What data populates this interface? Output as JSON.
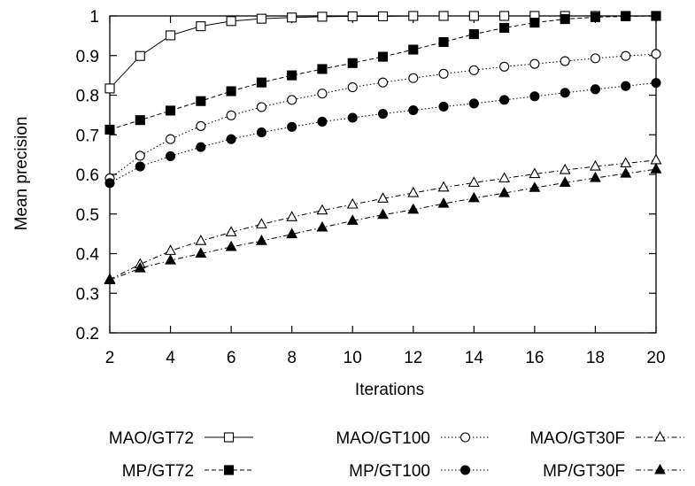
{
  "chart_data": {
    "type": "line",
    "title": "",
    "xlabel": "Iterations",
    "ylabel": "Mean precision",
    "xlim": [
      2,
      20
    ],
    "ylim": [
      0.2,
      1
    ],
    "xticks": [
      2,
      4,
      6,
      8,
      10,
      12,
      14,
      16,
      18,
      20
    ],
    "xtick_labels": [
      "2",
      "4",
      "6",
      "8",
      "10",
      "12",
      "14",
      "16",
      "18",
      "20"
    ],
    "yticks": [
      0.2,
      0.3,
      0.4,
      0.5,
      0.6,
      0.7,
      0.8,
      0.9,
      1
    ],
    "ytick_labels": [
      "0.2",
      "0.3",
      "0.4",
      "0.5",
      "0.6",
      "0.7",
      "0.8",
      "0.9",
      "1"
    ],
    "grid": false,
    "legend_position": "bottom",
    "x": [
      2,
      3,
      4,
      5,
      6,
      7,
      8,
      9,
      10,
      11,
      12,
      13,
      14,
      15,
      16,
      17,
      18,
      19,
      20
    ],
    "series": [
      {
        "name": "MAO/GT72",
        "marker": "open-square",
        "dash": "solid",
        "values": [
          0.817,
          0.899,
          0.951,
          0.974,
          0.987,
          0.993,
          0.996,
          0.998,
          0.999,
          0.999,
          1.0,
          1.0,
          1.0,
          1.0,
          1.0,
          1.0,
          1.0,
          1.0,
          1.0
        ]
      },
      {
        "name": "MP/GT72",
        "marker": "filled-square",
        "dash": "dashed",
        "values": [
          0.713,
          0.737,
          0.761,
          0.785,
          0.81,
          0.832,
          0.85,
          0.866,
          0.881,
          0.897,
          0.915,
          0.934,
          0.954,
          0.97,
          0.983,
          0.992,
          0.997,
          0.999,
          1.0
        ]
      },
      {
        "name": "MAO/GT100",
        "marker": "open-circle",
        "dash": "dotted",
        "values": [
          0.59,
          0.647,
          0.689,
          0.722,
          0.749,
          0.77,
          0.788,
          0.804,
          0.82,
          0.832,
          0.843,
          0.854,
          0.863,
          0.872,
          0.879,
          0.886,
          0.893,
          0.899,
          0.904
        ]
      },
      {
        "name": "MP/GT100",
        "marker": "filled-circle",
        "dash": "dotted",
        "values": [
          0.578,
          0.62,
          0.646,
          0.669,
          0.689,
          0.706,
          0.72,
          0.733,
          0.743,
          0.753,
          0.762,
          0.771,
          0.779,
          0.788,
          0.797,
          0.806,
          0.815,
          0.823,
          0.831
        ]
      },
      {
        "name": "MAO/GT30F",
        "marker": "open-triangle",
        "dash": "dash-dot",
        "values": [
          0.335,
          0.373,
          0.407,
          0.432,
          0.454,
          0.474,
          0.492,
          0.509,
          0.524,
          0.539,
          0.553,
          0.567,
          0.579,
          0.59,
          0.601,
          0.611,
          0.62,
          0.628,
          0.636
        ]
      },
      {
        "name": "MP/GT30F",
        "marker": "filled-triangle",
        "dash": "dash-dot",
        "values": [
          0.333,
          0.363,
          0.383,
          0.4,
          0.417,
          0.432,
          0.449,
          0.466,
          0.483,
          0.498,
          0.511,
          0.526,
          0.54,
          0.553,
          0.566,
          0.579,
          0.591,
          0.602,
          0.613
        ]
      }
    ]
  }
}
